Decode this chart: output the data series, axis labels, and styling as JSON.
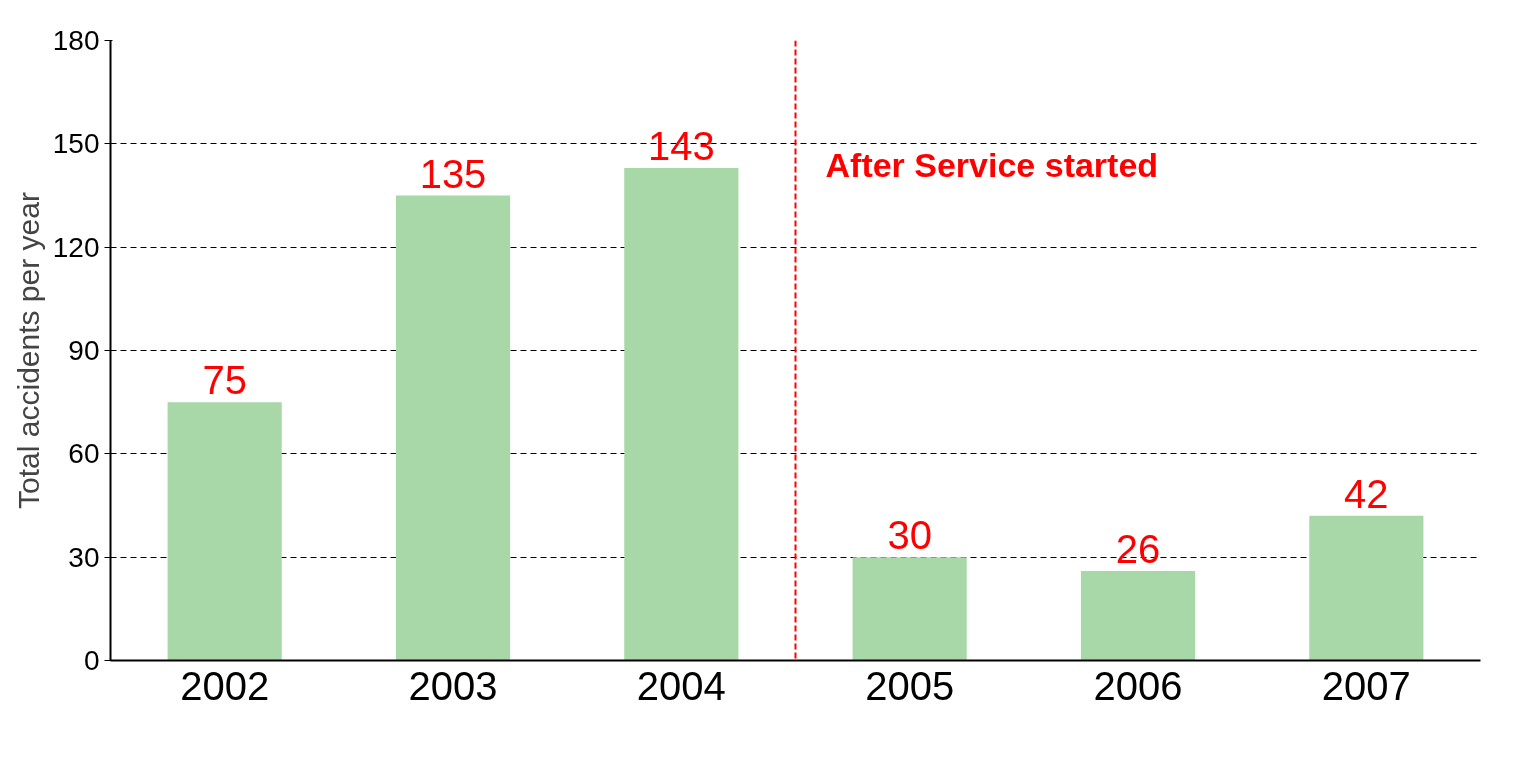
{
  "chart_data": {
    "type": "bar",
    "ylabel": "Total accidents per year",
    "x": [
      2002,
      2003,
      2004,
      2005,
      2006,
      2007
    ],
    "xlim": [
      2001.5,
      2007.5
    ],
    "xticks": [
      2002,
      2003,
      2004,
      2005,
      2006,
      2007
    ],
    "values": [
      75,
      135,
      143,
      30,
      26,
      42
    ],
    "color": "#a8d8a8",
    "ylim": [
      0,
      180
    ],
    "yticks": [
      0,
      30,
      60,
      90,
      120,
      150,
      180
    ],
    "grid": "y",
    "data_labels": true,
    "ref_lines": [
      {
        "axis": "x",
        "value": 2004.5,
        "label": "After Service started",
        "color": "#ff0000",
        "line_style": "dashed"
      }
    ]
  }
}
